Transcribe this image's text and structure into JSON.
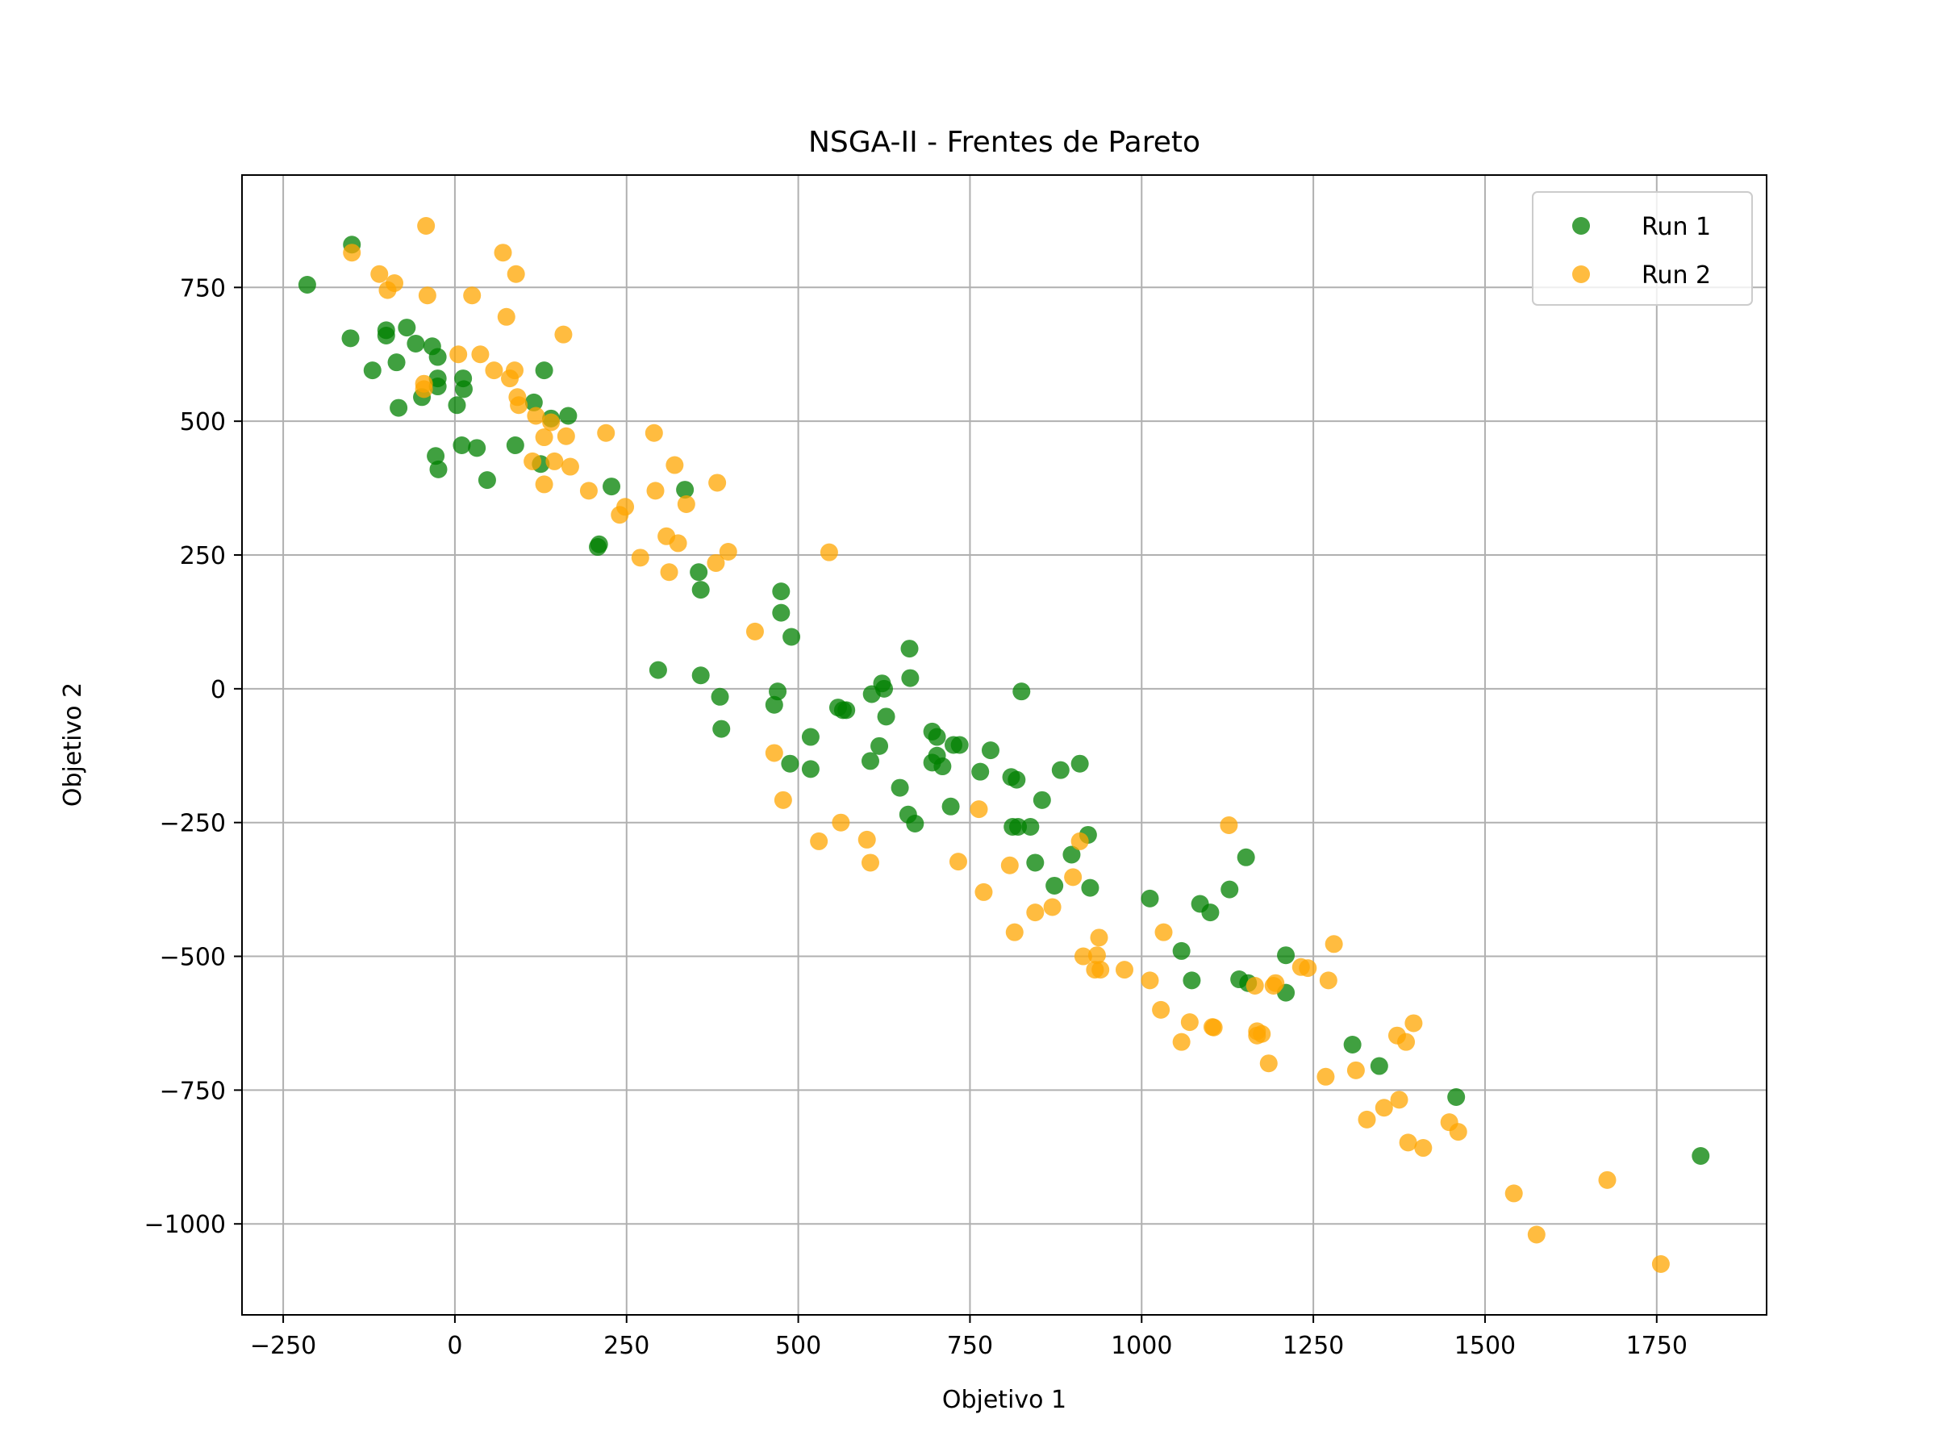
{
  "chart_data": {
    "type": "scatter",
    "title": "NSGA-II - Frentes de Pareto",
    "xlabel": "Objetivo 1",
    "ylabel": "Objetivo 2",
    "xlim": [
      -310,
      1910
    ],
    "ylim": [
      -1170,
      960
    ],
    "xticks": [
      -250,
      0,
      250,
      500,
      750,
      1000,
      1250,
      1500,
      1750
    ],
    "xtick_labels": [
      "−250",
      "0",
      "250",
      "500",
      "750",
      "1000",
      "1250",
      "1500",
      "1750"
    ],
    "yticks": [
      750,
      500,
      250,
      0,
      -250,
      -500,
      -750,
      -1000
    ],
    "ytick_labels": [
      "750",
      "500",
      "250",
      "0",
      "−250",
      "−500",
      "−750",
      "−1000"
    ],
    "grid": true,
    "legend_position": "top-right",
    "series": [
      {
        "name": "Run 1",
        "color": "#008000",
        "points": [
          [
            -215,
            755
          ],
          [
            -150,
            830
          ],
          [
            -152,
            655
          ],
          [
            -120,
            595
          ],
          [
            -100,
            670
          ],
          [
            -100,
            660
          ],
          [
            -85,
            610
          ],
          [
            -82,
            525
          ],
          [
            -70,
            675
          ],
          [
            -57,
            645
          ],
          [
            -48,
            545
          ],
          [
            -33,
            640
          ],
          [
            -25,
            620
          ],
          [
            -25,
            580
          ],
          [
            -25,
            565
          ],
          [
            -28,
            435
          ],
          [
            -24,
            410
          ],
          [
            3,
            530
          ],
          [
            12,
            580
          ],
          [
            13,
            560
          ],
          [
            10,
            455
          ],
          [
            32,
            450
          ],
          [
            47,
            390
          ],
          [
            88,
            455
          ],
          [
            115,
            535
          ],
          [
            125,
            420
          ],
          [
            130,
            595
          ],
          [
            140,
            505
          ],
          [
            165,
            510
          ],
          [
            208,
            265
          ],
          [
            210,
            270
          ],
          [
            228,
            378
          ],
          [
            296,
            35
          ],
          [
            335,
            372
          ],
          [
            355,
            218
          ],
          [
            358,
            185
          ],
          [
            358,
            25
          ],
          [
            386,
            -15
          ],
          [
            388,
            -75
          ],
          [
            465,
            -30
          ],
          [
            470,
            -5
          ],
          [
            475,
            182
          ],
          [
            475,
            142
          ],
          [
            490,
            97
          ],
          [
            488,
            -140
          ],
          [
            518,
            -90
          ],
          [
            518,
            -150
          ],
          [
            558,
            -35
          ],
          [
            565,
            -40
          ],
          [
            570,
            -40
          ],
          [
            605,
            -135
          ],
          [
            607,
            -10
          ],
          [
            618,
            -107
          ],
          [
            622,
            10
          ],
          [
            625,
            0
          ],
          [
            628,
            -52
          ],
          [
            648,
            -185
          ],
          [
            660,
            -235
          ],
          [
            662,
            75
          ],
          [
            663,
            20
          ],
          [
            670,
            -252
          ],
          [
            695,
            -80
          ],
          [
            695,
            -138
          ],
          [
            702,
            -90
          ],
          [
            702,
            -125
          ],
          [
            710,
            -145
          ],
          [
            722,
            -220
          ],
          [
            726,
            -105
          ],
          [
            735,
            -105
          ],
          [
            765,
            -155
          ],
          [
            780,
            -115
          ],
          [
            810,
            -165
          ],
          [
            812,
            -258
          ],
          [
            818,
            -170
          ],
          [
            820,
            -258
          ],
          [
            825,
            -5
          ],
          [
            838,
            -258
          ],
          [
            845,
            -325
          ],
          [
            855,
            -208
          ],
          [
            873,
            -368
          ],
          [
            882,
            -152
          ],
          [
            898,
            -310
          ],
          [
            910,
            -140
          ],
          [
            922,
            -273
          ],
          [
            925,
            -372
          ],
          [
            1012,
            -392
          ],
          [
            1058,
            -490
          ],
          [
            1073,
            -545
          ],
          [
            1085,
            -402
          ],
          [
            1100,
            -418
          ],
          [
            1128,
            -375
          ],
          [
            1142,
            -543
          ],
          [
            1152,
            -315
          ],
          [
            1155,
            -550
          ],
          [
            1210,
            -498
          ],
          [
            1210,
            -568
          ],
          [
            1307,
            -665
          ],
          [
            1346,
            -705
          ],
          [
            1458,
            -763
          ],
          [
            1814,
            -873
          ]
        ]
      },
      {
        "name": "Run 2",
        "color": "#FFA500",
        "points": [
          [
            -150,
            815
          ],
          [
            -110,
            775
          ],
          [
            -98,
            745
          ],
          [
            -88,
            758
          ],
          [
            -45,
            560
          ],
          [
            -45,
            570
          ],
          [
            -42,
            865
          ],
          [
            -40,
            735
          ],
          [
            5,
            625
          ],
          [
            25,
            735
          ],
          [
            37,
            625
          ],
          [
            57,
            595
          ],
          [
            70,
            815
          ],
          [
            75,
            695
          ],
          [
            80,
            580
          ],
          [
            87,
            595
          ],
          [
            89,
            775
          ],
          [
            91,
            545
          ],
          [
            93,
            530
          ],
          [
            113,
            425
          ],
          [
            118,
            510
          ],
          [
            130,
            470
          ],
          [
            130,
            382
          ],
          [
            140,
            498
          ],
          [
            145,
            425
          ],
          [
            158,
            662
          ],
          [
            162,
            472
          ],
          [
            168,
            415
          ],
          [
            195,
            370
          ],
          [
            220,
            478
          ],
          [
            240,
            325
          ],
          [
            248,
            340
          ],
          [
            270,
            245
          ],
          [
            290,
            478
          ],
          [
            292,
            370
          ],
          [
            308,
            285
          ],
          [
            312,
            218
          ],
          [
            320,
            418
          ],
          [
            325,
            272
          ],
          [
            337,
            345
          ],
          [
            380,
            235
          ],
          [
            382,
            385
          ],
          [
            398,
            256
          ],
          [
            437,
            107
          ],
          [
            465,
            -120
          ],
          [
            478,
            -208
          ],
          [
            530,
            -285
          ],
          [
            545,
            255
          ],
          [
            562,
            -250
          ],
          [
            600,
            -282
          ],
          [
            605,
            -325
          ],
          [
            733,
            -323
          ],
          [
            763,
            -225
          ],
          [
            770,
            -380
          ],
          [
            808,
            -330
          ],
          [
            815,
            -455
          ],
          [
            845,
            -418
          ],
          [
            870,
            -408
          ],
          [
            900,
            -352
          ],
          [
            910,
            -285
          ],
          [
            915,
            -500
          ],
          [
            932,
            -525
          ],
          [
            935,
            -498
          ],
          [
            938,
            -465
          ],
          [
            940,
            -525
          ],
          [
            975,
            -525
          ],
          [
            1012,
            -545
          ],
          [
            1028,
            -600
          ],
          [
            1032,
            -455
          ],
          [
            1058,
            -660
          ],
          [
            1070,
            -623
          ],
          [
            1103,
            -632
          ],
          [
            1105,
            -633
          ],
          [
            1127,
            -255
          ],
          [
            1165,
            -555
          ],
          [
            1168,
            -640
          ],
          [
            1168,
            -648
          ],
          [
            1175,
            -645
          ],
          [
            1185,
            -700
          ],
          [
            1192,
            -555
          ],
          [
            1195,
            -550
          ],
          [
            1232,
            -520
          ],
          [
            1242,
            -522
          ],
          [
            1268,
            -725
          ],
          [
            1272,
            -545
          ],
          [
            1280,
            -477
          ],
          [
            1312,
            -713
          ],
          [
            1328,
            -805
          ],
          [
            1353,
            -783
          ],
          [
            1372,
            -648
          ],
          [
            1375,
            -768
          ],
          [
            1385,
            -660
          ],
          [
            1388,
            -848
          ],
          [
            1396,
            -625
          ],
          [
            1410,
            -858
          ],
          [
            1448,
            -810
          ],
          [
            1461,
            -828
          ],
          [
            1542,
            -943
          ],
          [
            1575,
            -1020
          ],
          [
            1678,
            -918
          ],
          [
            1756,
            -1075
          ]
        ]
      }
    ]
  }
}
